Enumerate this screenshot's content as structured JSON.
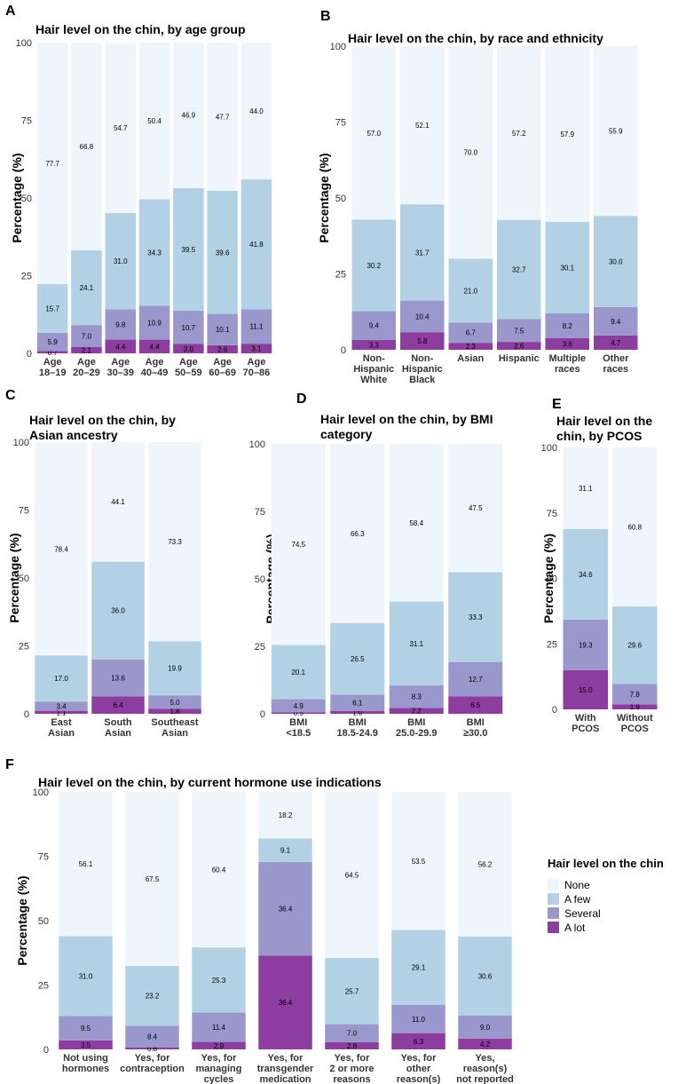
{
  "colors": {
    "None": "#eef5fb",
    "A few": "#b2d1e5",
    "Several": "#9a97cc",
    "A lot": "#8d3c9f"
  },
  "legend": {
    "title": "Hair level on the chin",
    "entries": [
      "None",
      "A few",
      "Several",
      "A lot"
    ]
  },
  "chart_data": [
    {
      "id": "A",
      "letter": "A",
      "type": "bar",
      "stacked": true,
      "title": [
        "Hair level on the chin, by age group"
      ],
      "ylabel": "Percentage (%)",
      "ylim": [
        0,
        100
      ],
      "yticks": [
        "0",
        "25",
        "50",
        "75",
        "100"
      ],
      "categories": [
        [
          "Age",
          "18–19"
        ],
        [
          "Age",
          "20–29"
        ],
        [
          "Age",
          "30–39"
        ],
        [
          "Age",
          "40–49"
        ],
        [
          "Age",
          "50–59"
        ],
        [
          "Age",
          "60–69"
        ],
        [
          "Age",
          "70–86"
        ]
      ],
      "series": [
        {
          "name": "A lot",
          "values": [
            0.7,
            2.1,
            4.4,
            4.4,
            3.0,
            2.6,
            3.1
          ],
          "labels": [
            "0.7",
            "2.1",
            "4.4",
            "4.4",
            "3.0",
            "2.6",
            "3.1"
          ]
        },
        {
          "name": "Several",
          "values": [
            5.9,
            7.0,
            9.8,
            10.9,
            10.7,
            10.1,
            11.1
          ],
          "labels": [
            "5.9",
            "7.0",
            "9.8",
            "10.9",
            "10.7",
            "10.1",
            "11.1"
          ]
        },
        {
          "name": "A few",
          "values": [
            15.7,
            24.1,
            31.0,
            34.3,
            39.5,
            39.6,
            41.8
          ],
          "labels": [
            "15.7",
            "24.1",
            "31.0",
            "34.3",
            "39.5",
            "39.6",
            "41.8"
          ]
        },
        {
          "name": "None",
          "values": [
            77.7,
            66.8,
            54.7,
            50.4,
            46.9,
            47.7,
            44.0
          ],
          "labels": [
            "77.7",
            "66.8",
            "54.7",
            "50.4",
            "46.9",
            "47.7",
            "44.0"
          ]
        }
      ]
    },
    {
      "id": "B",
      "letter": "B",
      "type": "bar",
      "stacked": true,
      "title": [
        "Hair level on the chin, by race and ethnicity"
      ],
      "ylabel": "Percentage (%)",
      "ylim": [
        0,
        100
      ],
      "yticks": [
        "0",
        "25",
        "50",
        "75",
        "100"
      ],
      "categories": [
        [
          "Non-",
          "Hispanic",
          "White"
        ],
        [
          "Non-",
          "Hispanic",
          "Black"
        ],
        [
          "Asian"
        ],
        [
          "Hispanic"
        ],
        [
          "Multiple",
          "races"
        ],
        [
          "Other",
          "races"
        ]
      ],
      "series": [
        {
          "name": "A lot",
          "values": [
            3.3,
            5.8,
            2.3,
            2.6,
            3.8,
            4.7
          ],
          "labels": [
            "3.3",
            "5.8",
            "2.3",
            "2.6",
            "3.8",
            "4.7"
          ]
        },
        {
          "name": "Several",
          "values": [
            9.4,
            10.4,
            6.7,
            7.5,
            8.2,
            9.4
          ],
          "labels": [
            "9.4",
            "10.4",
            "6.7",
            "7.5",
            "8.2",
            "9.4"
          ]
        },
        {
          "name": "A few",
          "values": [
            30.2,
            31.7,
            21.0,
            32.7,
            30.1,
            30.0
          ],
          "labels": [
            "30.2",
            "31.7",
            "21.0",
            "32.7",
            "30.1",
            "30.0"
          ]
        },
        {
          "name": "None",
          "values": [
            57.0,
            52.1,
            70.0,
            57.2,
            57.9,
            55.9
          ],
          "labels": [
            "57.0",
            "52.1",
            "70.0",
            "57.2",
            "57.9",
            "55.9"
          ]
        }
      ]
    },
    {
      "id": "C",
      "letter": "C",
      "type": "bar",
      "stacked": true,
      "title": [
        "Hair level on the chin, by",
        "Asian ancestry"
      ],
      "ylabel": "Percentage (%)",
      "ylim": [
        0,
        100
      ],
      "yticks": [
        "0",
        "25",
        "50",
        "75",
        "100"
      ],
      "categories": [
        [
          "East",
          "Asian"
        ],
        [
          "South",
          "Asian"
        ],
        [
          "Southeast",
          "Asian"
        ]
      ],
      "series": [
        {
          "name": "A lot",
          "values": [
            1.1,
            6.4,
            1.8
          ],
          "labels": [
            "1.1",
            "6.4",
            "1.8"
          ]
        },
        {
          "name": "Several",
          "values": [
            3.4,
            13.6,
            5.0
          ],
          "labels": [
            "3.4",
            "13.6",
            "5.0"
          ]
        },
        {
          "name": "A few",
          "values": [
            17.0,
            36.0,
            19.9
          ],
          "labels": [
            "17.0",
            "36.0",
            "19.9"
          ]
        },
        {
          "name": "None",
          "values": [
            78.4,
            44.1,
            73.3
          ],
          "labels": [
            "78.4",
            "44.1",
            "73.3"
          ]
        }
      ]
    },
    {
      "id": "D",
      "letter": "D",
      "type": "bar",
      "stacked": true,
      "title": [
        "Hair level on the chin, by BMI",
        "category"
      ],
      "ylabel": "Percentage (%)",
      "ylim": [
        0,
        100
      ],
      "yticks": [
        "0",
        "25",
        "50",
        "75",
        "100"
      ],
      "categories": [
        [
          "BMI",
          "<18.5"
        ],
        [
          "BMI",
          "18.5-24.9"
        ],
        [
          "BMI",
          "25.0-29.9"
        ],
        [
          "BMI",
          "≥30.0"
        ]
      ],
      "series": [
        {
          "name": "A lot",
          "values": [
            0.5,
            1.0,
            2.2,
            6.5
          ],
          "labels": [
            "0.5",
            "1.0",
            "2.2",
            "6.5"
          ]
        },
        {
          "name": "Several",
          "values": [
            4.9,
            6.1,
            8.3,
            12.7
          ],
          "labels": [
            "4.9",
            "6.1",
            "8.3",
            "12.7"
          ]
        },
        {
          "name": "A few",
          "values": [
            20.1,
            26.5,
            31.1,
            33.3
          ],
          "labels": [
            "20.1",
            "26.5",
            "31.1",
            "33.3"
          ]
        },
        {
          "name": "None",
          "values": [
            74.5,
            66.3,
            58.4,
            47.5
          ],
          "labels": [
            "74.5",
            "66.3",
            "58.4",
            "47.5"
          ]
        }
      ]
    },
    {
      "id": "E",
      "letter": "E",
      "type": "bar",
      "stacked": true,
      "title": [
        "Hair level on the",
        "chin, by PCOS"
      ],
      "ylabel": "Percentage (%)",
      "ylim": [
        0,
        100
      ],
      "yticks": [
        "0",
        "25",
        "50",
        "75",
        "100"
      ],
      "categories": [
        [
          "With",
          "PCOS"
        ],
        [
          "Without",
          "PCOS"
        ]
      ],
      "series": [
        {
          "name": "A lot",
          "values": [
            15.0,
            1.9
          ],
          "labels": [
            "15.0",
            "1.9"
          ]
        },
        {
          "name": "Several",
          "values": [
            19.3,
            7.8
          ],
          "labels": [
            "19.3",
            "7.8"
          ]
        },
        {
          "name": "A few",
          "values": [
            34.6,
            29.6
          ],
          "labels": [
            "34.6",
            "29.6"
          ]
        },
        {
          "name": "None",
          "values": [
            31.1,
            60.8
          ],
          "labels": [
            "31.1",
            "60.8"
          ]
        }
      ]
    },
    {
      "id": "F",
      "letter": "F",
      "type": "bar",
      "stacked": true,
      "title": [
        "Hair level on the chin, by current hormone use indications"
      ],
      "ylabel": "Percentage (%)",
      "ylim": [
        0,
        100
      ],
      "yticks": [
        "0",
        "25",
        "50",
        "75",
        "100"
      ],
      "categories": [
        [
          "Not using",
          "hormones"
        ],
        [
          "Yes, for",
          "contraception"
        ],
        [
          "Yes, for",
          "managing",
          "cycles"
        ],
        [
          "Yes, for",
          "transgender",
          "medication"
        ],
        [
          "Yes, for",
          "2 or more",
          "reasons"
        ],
        [
          "Yes, for",
          "other",
          "reason(s)"
        ],
        [
          "Yes,",
          "reason(s)",
          "not reported"
        ]
      ],
      "series": [
        {
          "name": "A lot",
          "values": [
            3.5,
            0.8,
            2.9,
            36.4,
            2.8,
            6.3,
            4.2
          ],
          "labels": [
            "3.5",
            "0.8",
            "2.9",
            "36.4",
            "2.8",
            "6.3",
            "4.2"
          ]
        },
        {
          "name": "Several",
          "values": [
            9.5,
            8.4,
            11.4,
            36.4,
            7.0,
            11.0,
            9.0
          ],
          "labels": [
            "9.5",
            "8.4",
            "11.4",
            "36.4",
            "7.0",
            "11.0",
            "9.0"
          ]
        },
        {
          "name": "A few",
          "values": [
            31.0,
            23.2,
            25.3,
            9.1,
            25.7,
            29.1,
            30.6
          ],
          "labels": [
            "31.0",
            "23.2",
            "25.3",
            "9.1",
            "25.7",
            "29.1",
            "30.6"
          ]
        },
        {
          "name": "None",
          "values": [
            56.1,
            67.5,
            60.4,
            18.2,
            64.5,
            53.5,
            56.2
          ],
          "labels": [
            "56.1",
            "67.5",
            "60.4",
            "18.2",
            "64.5",
            "53.5",
            "56.2"
          ]
        }
      ]
    }
  ]
}
